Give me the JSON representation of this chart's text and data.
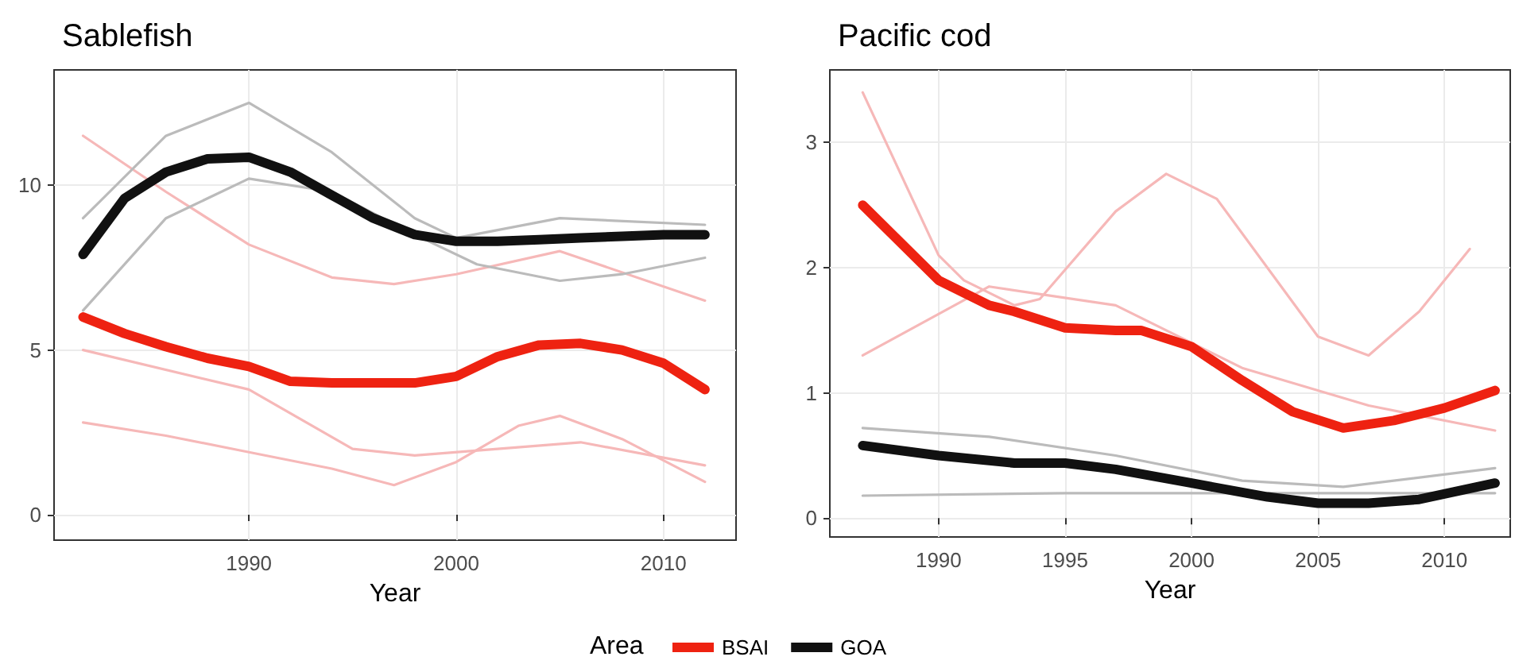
{
  "chart_data": [
    {
      "type": "line",
      "title": "Sablefish",
      "xlabel": "Year",
      "xlim": [
        1980.6,
        2013.5
      ],
      "xticks": [
        1990,
        2000,
        2010
      ],
      "ylim": [
        -0.77,
        13.5
      ],
      "yticks": [
        0,
        5,
        10
      ],
      "grid": true,
      "marker": "none",
      "line_style": "solid",
      "legend": "bottom",
      "legend_title": "Area",
      "series": [
        {
          "color": "#f6b8b8",
          "x": [
            1982,
            1986,
            1990,
            1994,
            1997,
            2000,
            2005,
            2012
          ],
          "values": [
            11.5,
            9.8,
            8.2,
            7.2,
            7.0,
            7.3,
            8.0,
            6.5
          ]
        },
        {
          "color": "#f6b8b8",
          "x": [
            1982,
            1986,
            1990,
            1994,
            1997,
            2000,
            2003,
            2005,
            2008,
            2012
          ],
          "values": [
            2.8,
            2.4,
            1.9,
            1.4,
            0.9,
            1.6,
            2.7,
            3.0,
            2.3,
            1.0
          ]
        },
        {
          "color": "#f6b8b8",
          "x": [
            1982,
            1990,
            1995,
            1998,
            2002,
            2006,
            2012
          ],
          "values": [
            5.0,
            3.8,
            2.0,
            1.8,
            2.0,
            2.2,
            1.5
          ]
        },
        {
          "color": "#bbbbbb",
          "x": [
            1982,
            1986,
            1990,
            1994,
            1998,
            2000,
            2005,
            2012
          ],
          "values": [
            9.0,
            11.5,
            12.5,
            11.0,
            9.0,
            8.4,
            9.0,
            8.8
          ]
        },
        {
          "color": "#bbbbbb",
          "x": [
            1982,
            1986,
            1990,
            1994,
            1998,
            2001,
            2005,
            2008,
            2012
          ],
          "values": [
            6.2,
            9.0,
            10.2,
            9.8,
            8.5,
            7.6,
            7.1,
            7.3,
            7.8
          ]
        },
        {
          "name": "BSAI",
          "color": "#ee2211",
          "x": [
            1982,
            1984,
            1986,
            1988,
            1990,
            1992,
            1994,
            1996,
            1998,
            2000,
            2002,
            2004,
            2006,
            2008,
            2010,
            2012
          ],
          "values": [
            6.0,
            5.5,
            5.1,
            4.75,
            4.5,
            4.05,
            4.0,
            4.0,
            4.0,
            4.2,
            4.8,
            5.15,
            5.2,
            5.0,
            4.6,
            3.8
          ]
        },
        {
          "name": "GOA",
          "color": "#111111",
          "x": [
            1982,
            1984,
            1986,
            1988,
            1990,
            1992,
            1994,
            1996,
            1998,
            2000,
            2002,
            2004,
            2006,
            2008,
            2010,
            2012
          ],
          "values": [
            7.9,
            9.6,
            10.4,
            10.8,
            10.85,
            10.4,
            9.7,
            9.0,
            8.5,
            8.3,
            8.3,
            8.35,
            8.4,
            8.45,
            8.5,
            8.5
          ]
        }
      ]
    },
    {
      "type": "line",
      "title": "Pacific cod",
      "xlabel": "Year",
      "xlim": [
        1985.7,
        2012.6
      ],
      "xticks": [
        1990,
        1995,
        2000,
        2005,
        2010
      ],
      "ylim": [
        -0.15,
        3.58
      ],
      "yticks": [
        0,
        1,
        2,
        3
      ],
      "grid": true,
      "marker": "none",
      "line_style": "solid",
      "legend": "bottom",
      "series": [
        {
          "color": "#f6b8b8",
          "x": [
            1987,
            1990,
            1991,
            1993,
            1994,
            1997,
            1999,
            2001,
            2005,
            2007,
            2009,
            2011
          ],
          "values": [
            3.4,
            2.1,
            1.9,
            1.7,
            1.75,
            2.45,
            2.75,
            2.55,
            1.45,
            1.3,
            1.65,
            2.15
          ]
        },
        {
          "color": "#f6b8b8",
          "x": [
            1987,
            1992,
            1997,
            2002,
            2007,
            2012
          ],
          "values": [
            1.3,
            1.85,
            1.7,
            1.2,
            0.9,
            0.7
          ]
        },
        {
          "color": "#bbbbbb",
          "x": [
            1987,
            1992,
            1997,
            2002,
            2006,
            2012
          ],
          "values": [
            0.72,
            0.65,
            0.5,
            0.3,
            0.25,
            0.4
          ]
        },
        {
          "color": "#bbbbbb",
          "x": [
            1987,
            1995,
            2000,
            2012
          ],
          "values": [
            0.18,
            0.2,
            0.2,
            0.2
          ]
        },
        {
          "name": "BSAI",
          "color": "#ee2211",
          "x": [
            1987,
            1988,
            1990,
            1992,
            1993,
            1995,
            1997,
            1998,
            2000,
            2002,
            2004,
            2006,
            2008,
            2010,
            2012
          ],
          "values": [
            2.5,
            2.3,
            1.9,
            1.7,
            1.65,
            1.52,
            1.5,
            1.5,
            1.37,
            1.1,
            0.85,
            0.72,
            0.78,
            0.88,
            1.02
          ]
        },
        {
          "name": "GOA",
          "color": "#111111",
          "x": [
            1987,
            1990,
            1993,
            1995,
            1997,
            2000,
            2003,
            2005,
            2007,
            2009,
            2012
          ],
          "values": [
            0.58,
            0.5,
            0.44,
            0.44,
            0.39,
            0.28,
            0.17,
            0.12,
            0.12,
            0.15,
            0.28
          ]
        }
      ]
    }
  ]
}
